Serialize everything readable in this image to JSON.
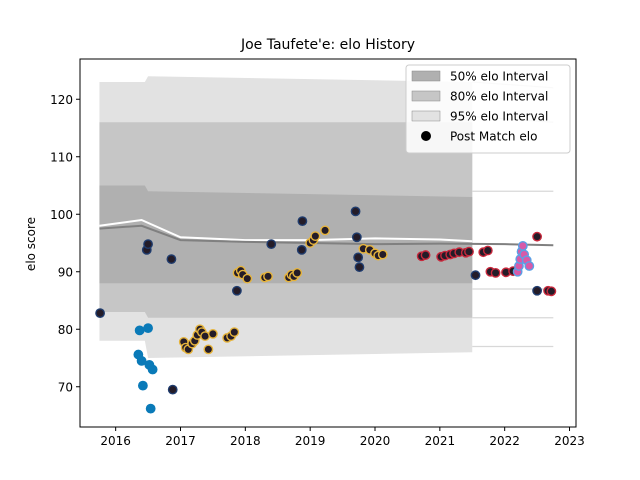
{
  "chart_data": {
    "type": "scatter",
    "title": "Joe Taufete'e: elo History",
    "xlabel": "",
    "ylabel": "elo score",
    "xlim": [
      2015.45,
      2023.1
    ],
    "ylim": [
      63,
      127
    ],
    "x_ticks": [
      2016,
      2017,
      2018,
      2019,
      2020,
      2021,
      2022,
      2023
    ],
    "y_ticks": [
      70,
      80,
      90,
      100,
      110,
      120
    ],
    "grid": false,
    "legend_position": "top-right",
    "legend": [
      {
        "label": "50% elo Interval",
        "kind": "band",
        "color": "#b0b0b0"
      },
      {
        "label": "80% elo Interval",
        "kind": "band",
        "color": "#c6c6c6"
      },
      {
        "label": "95% elo Interval",
        "kind": "band",
        "color": "#e2e2e2"
      },
      {
        "label": "Post Match elo",
        "kind": "marker",
        "color": "#000000"
      }
    ],
    "band_x": [
      2015.75,
      2016.45,
      2016.5,
      2021.5
    ],
    "band_95": {
      "lower": [
        78,
        78,
        75,
        76
      ],
      "upper": [
        123,
        123,
        124,
        123
      ]
    },
    "band_80": {
      "lower": [
        83,
        83,
        82,
        82
      ],
      "upper": [
        116,
        116,
        116,
        116
      ]
    },
    "band_50": {
      "lower": [
        88,
        88,
        88,
        88
      ],
      "upper": [
        105,
        105,
        104,
        103
      ]
    },
    "faded_bands": {
      "x": [
        2021.5,
        2022.75
      ],
      "upper_95": [
        123,
        122
      ],
      "upper_80": [
        117,
        116
      ],
      "upper_50": [
        104,
        104
      ],
      "lower_50": [
        87,
        87
      ],
      "lower_80": [
        82,
        82
      ],
      "lower_95": [
        77,
        77
      ]
    },
    "mean_lines": [
      {
        "color": "#ffffff",
        "x": [
          2015.75,
          2016.4,
          2017,
          2018,
          2019,
          2020,
          2021,
          2021.5
        ],
        "y": [
          98,
          99,
          96,
          95.5,
          95.5,
          95.8,
          95.6,
          95.3
        ]
      },
      {
        "color": "#808080",
        "x": [
          2015.75,
          2016.4,
          2017,
          2018,
          2019,
          2020,
          2021,
          2022,
          2022.75
        ],
        "y": [
          97.5,
          98,
          95.5,
          95.2,
          95,
          94.8,
          94.9,
          94.8,
          94.6
        ]
      }
    ],
    "series": [
      {
        "edge_color": "#1f3c6e",
        "fill_color": "#241c28",
        "points": [
          {
            "x": 2015.76,
            "y": 82.8
          },
          {
            "x": 2016.48,
            "y": 93.8
          },
          {
            "x": 2016.5,
            "y": 94.8
          },
          {
            "x": 2016.86,
            "y": 92.2
          },
          {
            "x": 2016.88,
            "y": 69.5
          },
          {
            "x": 2017.87,
            "y": 86.7
          },
          {
            "x": 2018.4,
            "y": 94.8
          },
          {
            "x": 2018.88,
            "y": 98.8
          },
          {
            "x": 2018.87,
            "y": 93.8
          },
          {
            "x": 2019.7,
            "y": 100.5
          },
          {
            "x": 2019.72,
            "y": 96
          },
          {
            "x": 2019.74,
            "y": 92.5
          },
          {
            "x": 2019.76,
            "y": 90.8
          },
          {
            "x": 2021.55,
            "y": 89.4
          },
          {
            "x": 2022.5,
            "y": 86.7
          }
        ]
      },
      {
        "edge_color": "#0a7ab8",
        "fill_color": "#0a7ab8",
        "points": [
          {
            "x": 2016.37,
            "y": 79.8
          },
          {
            "x": 2016.5,
            "y": 80.2
          },
          {
            "x": 2016.35,
            "y": 75.6
          },
          {
            "x": 2016.4,
            "y": 74.5
          },
          {
            "x": 2016.52,
            "y": 73.8
          },
          {
            "x": 2016.57,
            "y": 73
          },
          {
            "x": 2016.42,
            "y": 70.2
          },
          {
            "x": 2016.54,
            "y": 66.2
          }
        ]
      },
      {
        "edge_color": "#e6b43c",
        "fill_color": "#241c28",
        "points": [
          {
            "x": 2017.05,
            "y": 77.8
          },
          {
            "x": 2017.08,
            "y": 76.8
          },
          {
            "x": 2017.12,
            "y": 76.5
          },
          {
            "x": 2017.18,
            "y": 77.5
          },
          {
            "x": 2017.22,
            "y": 78
          },
          {
            "x": 2017.26,
            "y": 79
          },
          {
            "x": 2017.3,
            "y": 80
          },
          {
            "x": 2017.33,
            "y": 79.5
          },
          {
            "x": 2017.38,
            "y": 78.8
          },
          {
            "x": 2017.43,
            "y": 76.5
          },
          {
            "x": 2017.5,
            "y": 79.2
          },
          {
            "x": 2017.72,
            "y": 78.5
          },
          {
            "x": 2017.78,
            "y": 78.8
          },
          {
            "x": 2017.83,
            "y": 79.5
          },
          {
            "x": 2017.88,
            "y": 89.8
          },
          {
            "x": 2017.93,
            "y": 90.2
          },
          {
            "x": 2017.96,
            "y": 89.5
          },
          {
            "x": 2018.03,
            "y": 88.8
          },
          {
            "x": 2018.3,
            "y": 89
          },
          {
            "x": 2018.35,
            "y": 89.2
          },
          {
            "x": 2018.67,
            "y": 89
          },
          {
            "x": 2018.71,
            "y": 89.5
          },
          {
            "x": 2018.75,
            "y": 89.2
          },
          {
            "x": 2018.8,
            "y": 89.8
          },
          {
            "x": 2019.0,
            "y": 95
          },
          {
            "x": 2019.05,
            "y": 95.5
          },
          {
            "x": 2019.08,
            "y": 96.2
          },
          {
            "x": 2019.23,
            "y": 97.2
          },
          {
            "x": 2019.82,
            "y": 94
          },
          {
            "x": 2019.92,
            "y": 93.8
          },
          {
            "x": 2020.0,
            "y": 93.2
          },
          {
            "x": 2020.05,
            "y": 92.8
          },
          {
            "x": 2020.12,
            "y": 93
          }
        ]
      },
      {
        "edge_color": "#c8283c",
        "fill_color": "#241c28",
        "points": [
          {
            "x": 2020.72,
            "y": 92.7
          },
          {
            "x": 2020.78,
            "y": 92.9
          },
          {
            "x": 2021.02,
            "y": 92.6
          },
          {
            "x": 2021.08,
            "y": 92.8
          },
          {
            "x": 2021.16,
            "y": 93
          },
          {
            "x": 2021.22,
            "y": 93.2
          },
          {
            "x": 2021.3,
            "y": 93.4
          },
          {
            "x": 2021.4,
            "y": 93.3
          },
          {
            "x": 2021.45,
            "y": 93.5
          },
          {
            "x": 2021.67,
            "y": 93.4
          },
          {
            "x": 2021.74,
            "y": 93.7
          },
          {
            "x": 2021.78,
            "y": 90
          },
          {
            "x": 2021.86,
            "y": 89.8
          },
          {
            "x": 2022.02,
            "y": 89.9
          },
          {
            "x": 2022.13,
            "y": 90.1
          },
          {
            "x": 2022.5,
            "y": 96.1
          },
          {
            "x": 2022.67,
            "y": 86.7
          },
          {
            "x": 2022.72,
            "y": 86.6
          }
        ]
      },
      {
        "edge_color": "#5aa0e6",
        "fill_color": "#d85aa8",
        "points": [
          {
            "x": 2022.2,
            "y": 90
          },
          {
            "x": 2022.22,
            "y": 91
          },
          {
            "x": 2022.24,
            "y": 92.2
          },
          {
            "x": 2022.26,
            "y": 93.5
          },
          {
            "x": 2022.28,
            "y": 94.5
          },
          {
            "x": 2022.3,
            "y": 93
          },
          {
            "x": 2022.34,
            "y": 92
          },
          {
            "x": 2022.38,
            "y": 91
          }
        ]
      }
    ]
  }
}
